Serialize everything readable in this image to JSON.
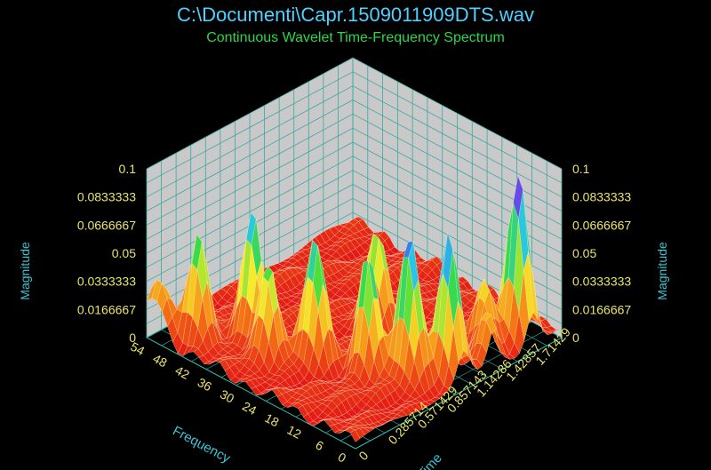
{
  "colors": {
    "background": "#000000",
    "title": "#4fd0ff",
    "subtitle": "#27d84a",
    "tick_labels": "#e9e36b",
    "axis_titles": "#3cc6d6",
    "wall": "#c9c9c9",
    "wall_grid": "#3fa7a0",
    "floor": "#000000",
    "floor_grid": "#2fb7a8"
  },
  "chart_data": {
    "type": "surface3d",
    "title": "C:\\Documenti\\Capr.1509011909DTS.wav",
    "subtitle": "Continuous Wavelet Time-Frequency Spectrum",
    "zlabel": "Magnitude",
    "xlabel": "Frequency",
    "ylabel": "Time",
    "z_ticks": [
      "0",
      "0.0166667",
      "0.0333333",
      "0.05",
      "0.0666667",
      "0.0833333",
      "0.1"
    ],
    "freq_ticks": [
      "0",
      "6",
      "12",
      "18",
      "24",
      "30",
      "36",
      "42",
      "48",
      "54"
    ],
    "time_ticks": [
      "0",
      "0.285714",
      "0.571429",
      "0.857143",
      "1.14286",
      "1.42857",
      "1.71429"
    ],
    "zlim": [
      0,
      0.1
    ],
    "freq_range": [
      0,
      56
    ],
    "time_range": [
      0,
      2
    ],
    "peaks": [
      {
        "freq": 54,
        "time": 0.05,
        "magnitude": 0.032
      },
      {
        "freq": 47,
        "time": 0.18,
        "magnitude": 0.062
      },
      {
        "freq": 40,
        "time": 0.45,
        "magnitude": 0.078
      },
      {
        "freq": 33,
        "time": 0.35,
        "magnitude": 0.052
      },
      {
        "freq": 26,
        "time": 0.55,
        "magnitude": 0.074
      },
      {
        "freq": 16,
        "time": 0.7,
        "magnitude": 0.073
      },
      {
        "freq": 9,
        "time": 0.85,
        "magnitude": 0.088
      },
      {
        "freq": 4,
        "time": 1.05,
        "magnitude": 0.085
      },
      {
        "freq": 2,
        "time": 1.35,
        "magnitude": 0.034
      },
      {
        "freq": 26,
        "time": 1.15,
        "magnitude": 0.063
      },
      {
        "freq": 7,
        "time": 1.5,
        "magnitude": 0.038
      },
      {
        "freq": 4,
        "time": 1.72,
        "magnitude": 0.1
      }
    ]
  }
}
